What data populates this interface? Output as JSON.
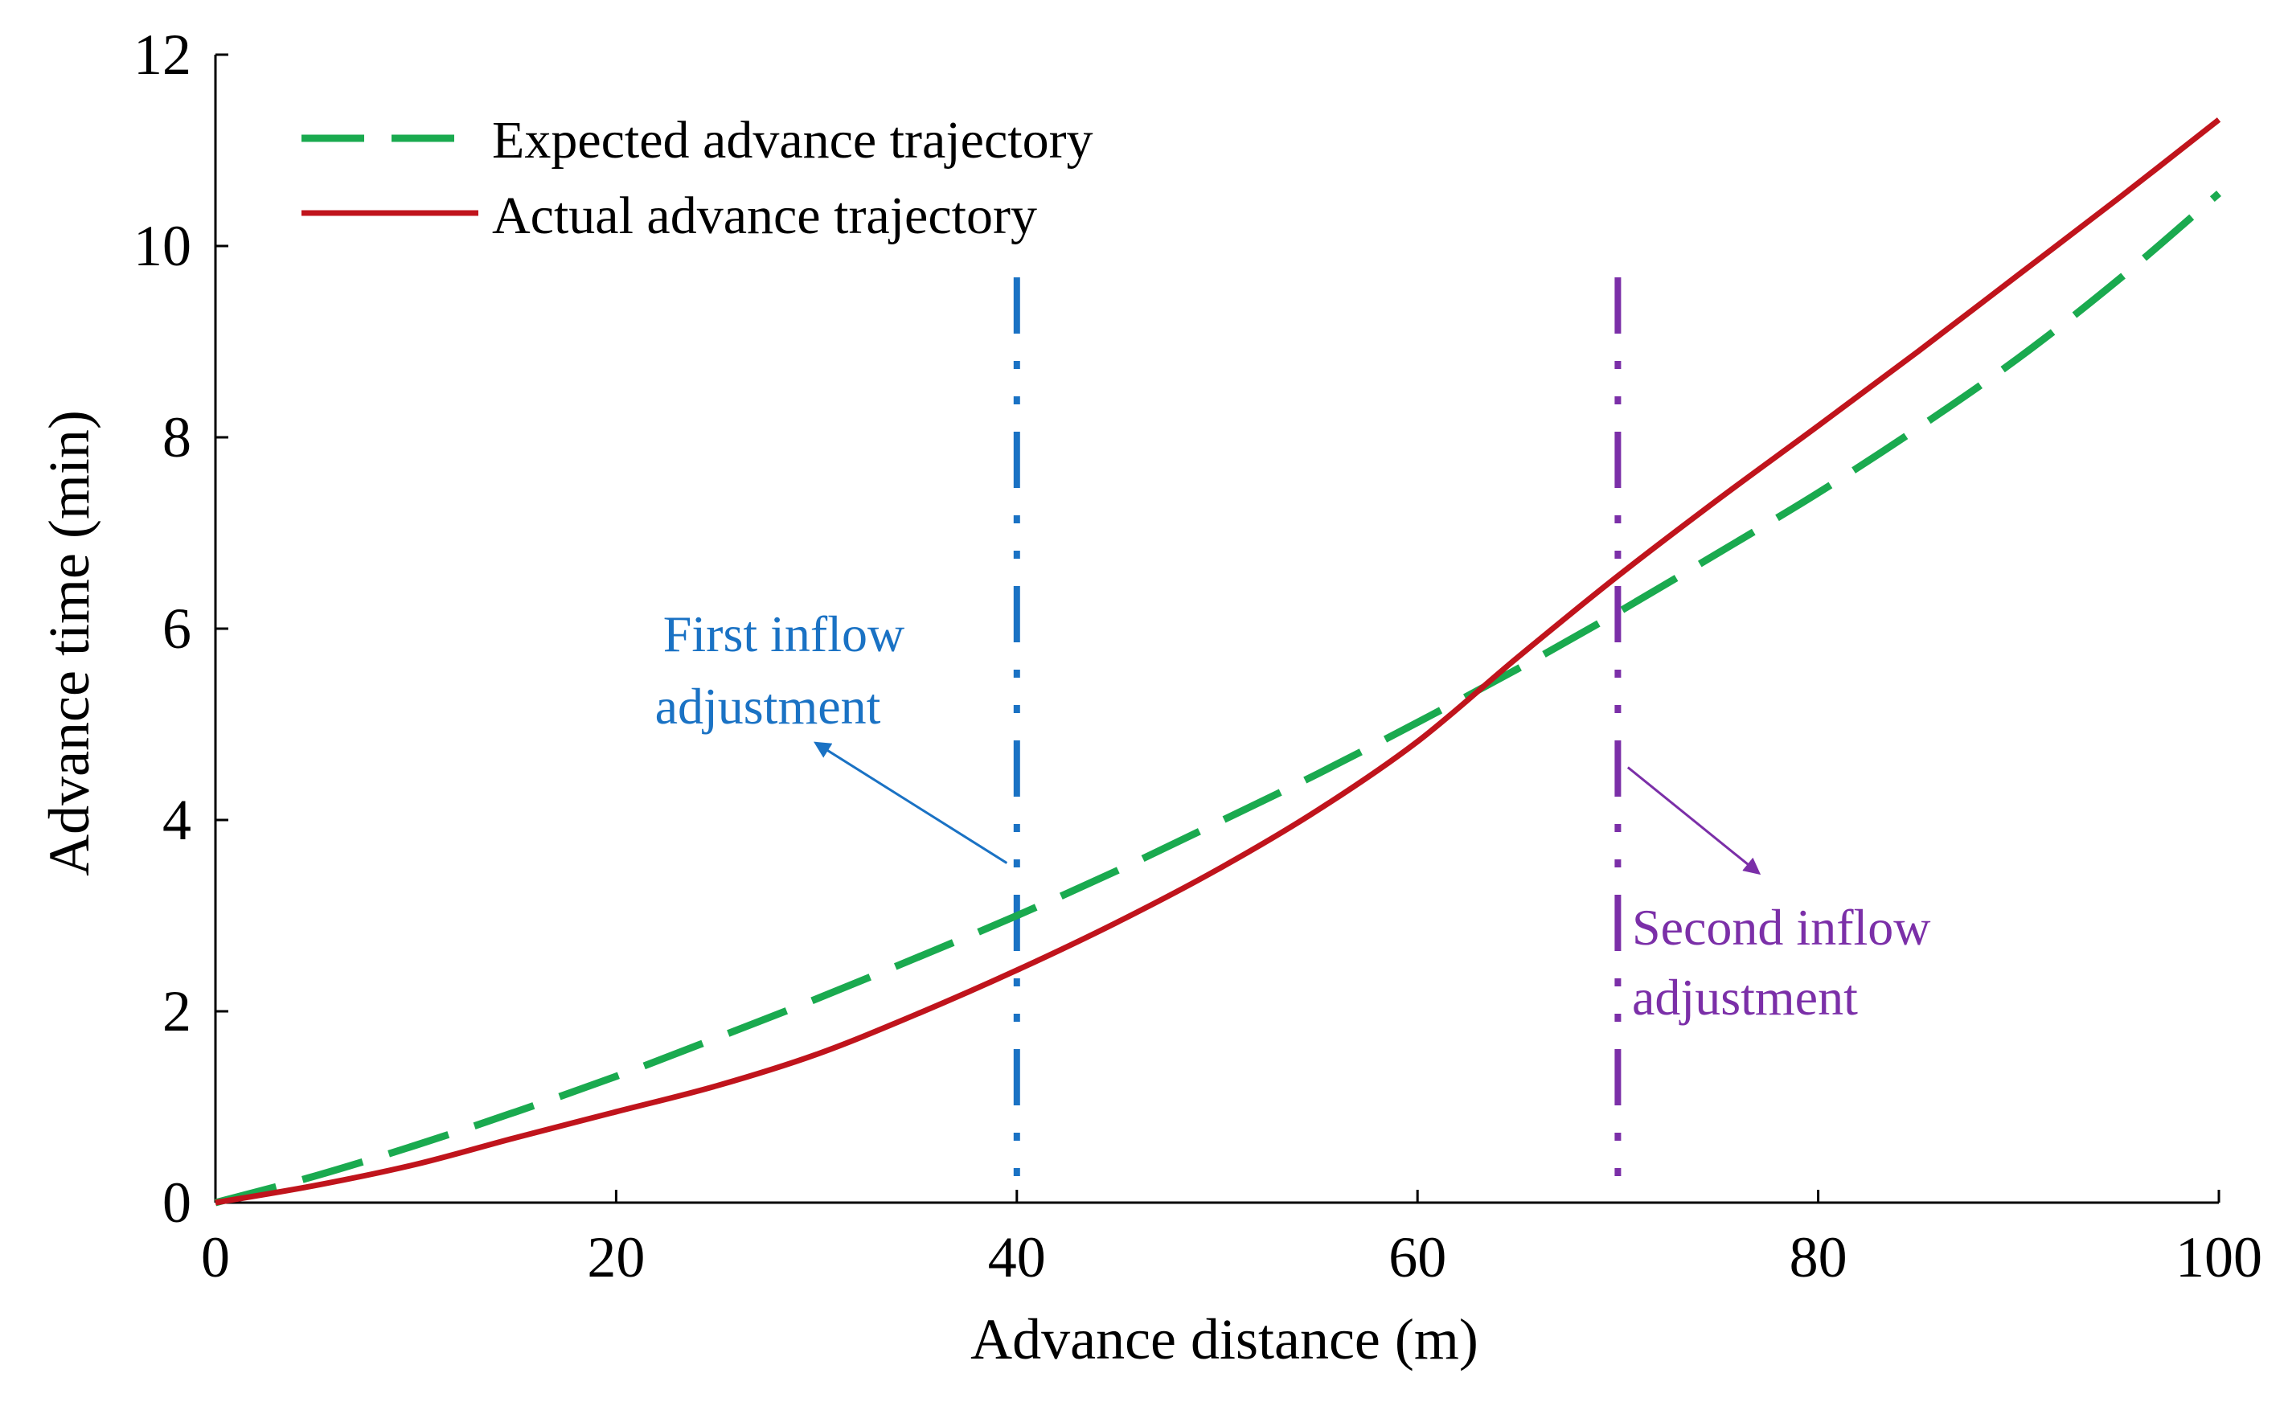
{
  "chart_data": {
    "type": "line",
    "title": "",
    "xlabel": "Advance distance (m)",
    "ylabel": "Advance time (min)",
    "xlim": [
      0,
      100
    ],
    "ylim": [
      0,
      12
    ],
    "xticks": [
      0,
      20,
      40,
      60,
      80,
      100
    ],
    "yticks": [
      0,
      2,
      4,
      6,
      8,
      10,
      12
    ],
    "grid": false,
    "legend_position": "top-left",
    "series": [
      {
        "name": "Expected advance trajectory",
        "style": "dashed",
        "color": "#1aaa4f",
        "x": [
          0,
          5,
          10,
          15,
          20,
          25,
          30,
          35,
          40,
          45,
          50,
          55,
          60,
          65,
          70,
          75,
          80,
          85,
          90,
          95,
          100
        ],
        "y": [
          0,
          0.28,
          0.6,
          0.95,
          1.32,
          1.72,
          2.13,
          2.56,
          3.0,
          3.47,
          3.97,
          4.48,
          5.02,
          5.58,
          6.17,
          6.79,
          7.42,
          8.1,
          8.83,
          9.65,
          10.55
        ]
      },
      {
        "name": "Actual advance trajectory",
        "style": "solid",
        "color": "#c0141c",
        "x": [
          0,
          5,
          10,
          15,
          20,
          25,
          30,
          35,
          40,
          45,
          50,
          55,
          60,
          65,
          70,
          75,
          80,
          85,
          90,
          95,
          100
        ],
        "y": [
          0,
          0.18,
          0.4,
          0.68,
          0.95,
          1.22,
          1.55,
          1.97,
          2.43,
          2.93,
          3.48,
          4.1,
          4.82,
          5.7,
          6.55,
          7.35,
          8.12,
          8.9,
          9.7,
          10.5,
          11.32
        ]
      }
    ],
    "reference_lines": [
      {
        "x": 40,
        "label_line1": "First inflow",
        "label_line2": "adjustment",
        "color": "#1a72c4"
      },
      {
        "x": 70,
        "label_line1": "Second inflow",
        "label_line2": "adjustment",
        "color": "#7b2fa8"
      }
    ],
    "annotations": [
      {
        "text_ref": "first",
        "from": [
          39.5,
          3.55
        ],
        "to": [
          30.0,
          4.8
        ]
      },
      {
        "text_ref": "second",
        "from": [
          70.5,
          4.55
        ],
        "to": [
          77.0,
          3.45
        ]
      }
    ],
    "axis_color": "#000000"
  }
}
